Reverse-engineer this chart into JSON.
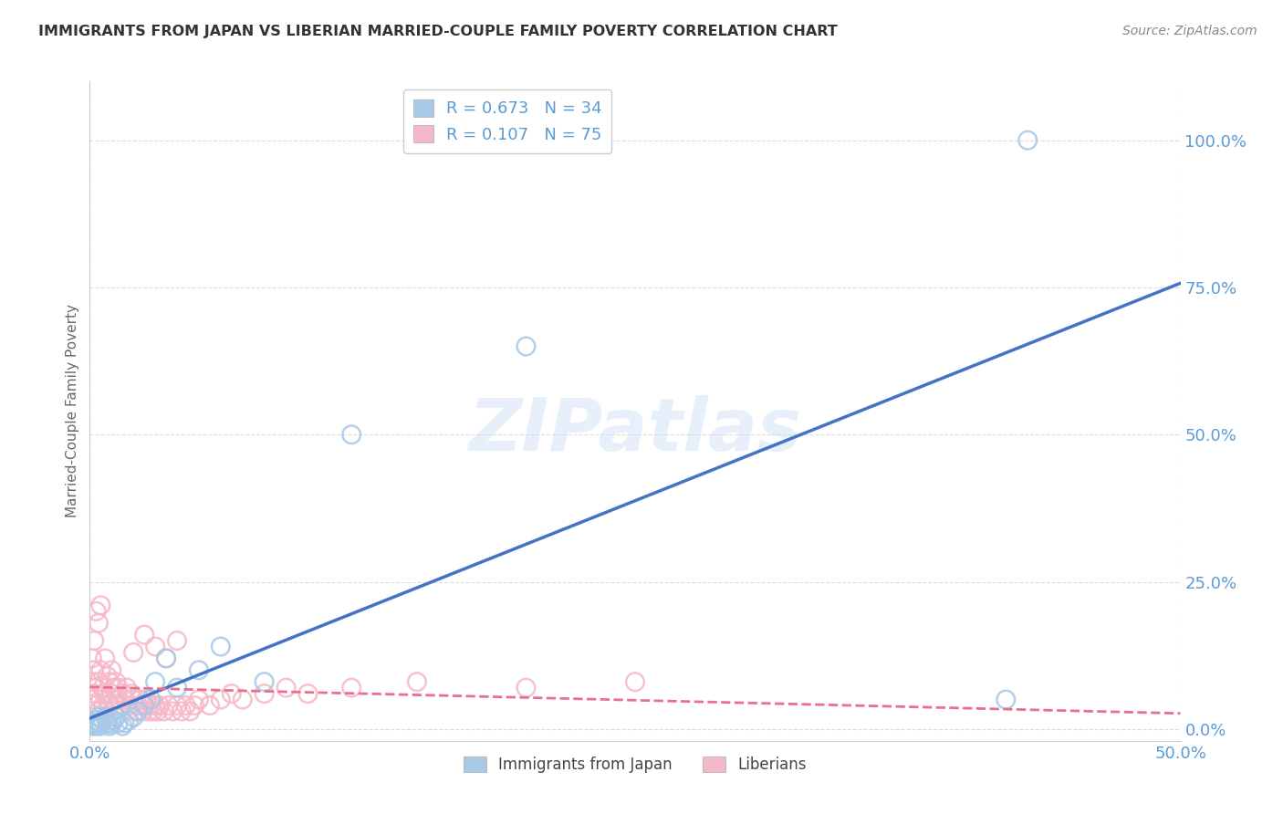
{
  "title": "IMMIGRANTS FROM JAPAN VS LIBERIAN MARRIED-COUPLE FAMILY POVERTY CORRELATION CHART",
  "source": "Source: ZipAtlas.com",
  "ylabel": "Married-Couple Family Poverty",
  "xlim": [
    0.0,
    0.5
  ],
  "ylim": [
    -0.02,
    1.1
  ],
  "xtick_vals": [
    0.0,
    0.5
  ],
  "xtick_labels": [
    "0.0%",
    "50.0%"
  ],
  "ytick_vals": [
    0.0,
    0.25,
    0.5,
    0.75,
    1.0
  ],
  "ytick_labels": [
    "0.0%",
    "25.0%",
    "50.0%",
    "75.0%",
    "100.0%"
  ],
  "japan_color": "#a8c8e8",
  "japan_edge_color": "#7bafd4",
  "liberia_color": "#f5b8c8",
  "liberia_edge_color": "#e890a8",
  "japan_R": 0.673,
  "japan_N": 34,
  "liberia_R": 0.107,
  "liberia_N": 75,
  "legend_label_japan": "Immigrants from Japan",
  "legend_label_liberia": "Liberians",
  "watermark": "ZIPatlas",
  "japan_scatter_x": [
    0.001,
    0.002,
    0.002,
    0.003,
    0.003,
    0.004,
    0.004,
    0.005,
    0.005,
    0.006,
    0.007,
    0.008,
    0.009,
    0.01,
    0.011,
    0.012,
    0.013,
    0.015,
    0.016,
    0.018,
    0.02,
    0.022,
    0.025,
    0.028,
    0.03,
    0.035,
    0.04,
    0.05,
    0.06,
    0.08,
    0.12,
    0.2,
    0.42,
    0.43
  ],
  "japan_scatter_y": [
    0.005,
    0.008,
    0.01,
    0.005,
    0.015,
    0.01,
    0.02,
    0.005,
    0.01,
    0.015,
    0.02,
    0.01,
    0.005,
    0.008,
    0.015,
    0.02,
    0.01,
    0.005,
    0.01,
    0.015,
    0.02,
    0.03,
    0.04,
    0.05,
    0.08,
    0.12,
    0.07,
    0.1,
    0.14,
    0.08,
    0.5,
    0.65,
    0.05,
    1.0
  ],
  "liberia_scatter_x": [
    0.001,
    0.001,
    0.001,
    0.002,
    0.002,
    0.002,
    0.003,
    0.003,
    0.003,
    0.004,
    0.004,
    0.004,
    0.005,
    0.005,
    0.005,
    0.006,
    0.006,
    0.007,
    0.007,
    0.008,
    0.008,
    0.009,
    0.009,
    0.01,
    0.01,
    0.011,
    0.011,
    0.012,
    0.012,
    0.013,
    0.013,
    0.014,
    0.015,
    0.016,
    0.017,
    0.018,
    0.019,
    0.02,
    0.021,
    0.022,
    0.023,
    0.024,
    0.025,
    0.026,
    0.027,
    0.028,
    0.029,
    0.03,
    0.031,
    0.032,
    0.034,
    0.036,
    0.038,
    0.04,
    0.042,
    0.044,
    0.046,
    0.048,
    0.05,
    0.055,
    0.06,
    0.065,
    0.07,
    0.08,
    0.09,
    0.1,
    0.12,
    0.15,
    0.2,
    0.25,
    0.02,
    0.025,
    0.03,
    0.035,
    0.04
  ],
  "liberia_scatter_y": [
    0.05,
    0.08,
    0.12,
    0.06,
    0.1,
    0.15,
    0.04,
    0.07,
    0.2,
    0.03,
    0.08,
    0.18,
    0.05,
    0.1,
    0.21,
    0.04,
    0.07,
    0.06,
    0.12,
    0.05,
    0.09,
    0.04,
    0.08,
    0.06,
    0.1,
    0.05,
    0.07,
    0.04,
    0.08,
    0.05,
    0.07,
    0.04,
    0.06,
    0.05,
    0.07,
    0.04,
    0.06,
    0.05,
    0.03,
    0.04,
    0.05,
    0.03,
    0.04,
    0.05,
    0.03,
    0.04,
    0.03,
    0.04,
    0.03,
    0.04,
    0.03,
    0.04,
    0.03,
    0.04,
    0.03,
    0.04,
    0.03,
    0.04,
    0.05,
    0.04,
    0.05,
    0.06,
    0.05,
    0.06,
    0.07,
    0.06,
    0.07,
    0.08,
    0.07,
    0.08,
    0.13,
    0.16,
    0.14,
    0.12,
    0.15
  ],
  "bg_color": "#ffffff",
  "grid_color": "#dddddd",
  "tick_color": "#5b9bd5",
  "ylabel_color": "#666666",
  "title_color": "#333333",
  "source_color": "#888888",
  "japan_line_color": "#4472c4",
  "liberia_line_color": "#e8708a"
}
